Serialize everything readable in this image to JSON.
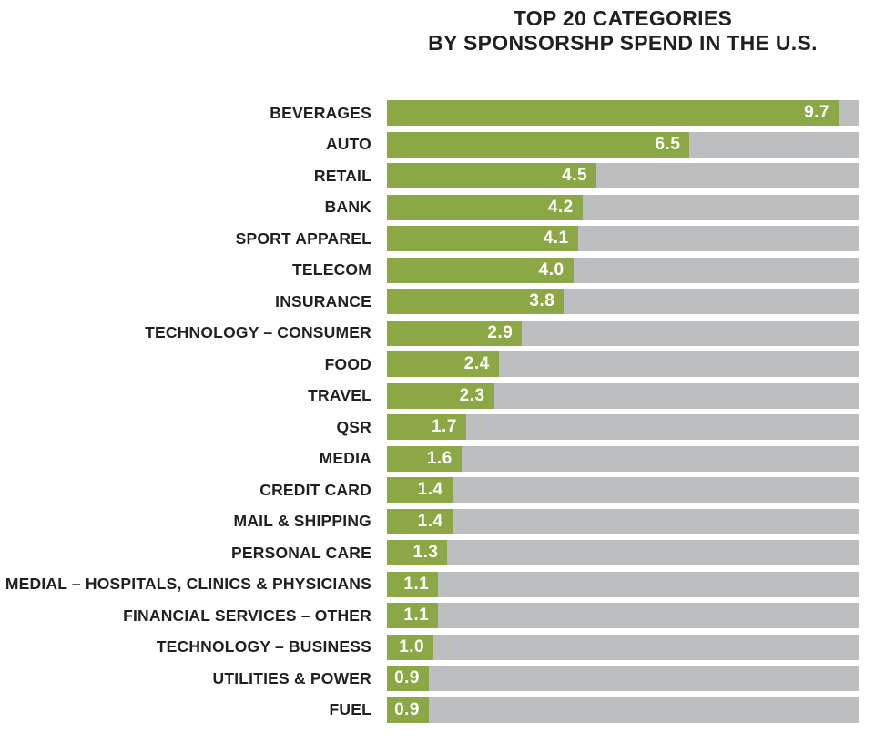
{
  "title": {
    "line1": "TOP 20 CATEGORIES",
    "line2": "BY SPONSORSHP SPEND IN THE U.S."
  },
  "colors": {
    "bar_fill": "#8CA745",
    "bar_track": "#BCBEC0",
    "title_text": "#231F20",
    "category_text": "#231F20",
    "value_text": "#FFFFFF"
  },
  "chart_data": {
    "type": "bar",
    "orientation": "horizontal",
    "title": "TOP 20 CATEGORIES BY SPONSORSHP SPEND IN THE U.S.",
    "xlabel": "",
    "ylabel": "",
    "xlim": [
      0,
      10.13
    ],
    "grid": false,
    "legend": false,
    "categories": [
      "BEVERAGES",
      "AUTO",
      "RETAIL",
      "BANK",
      "SPORT APPAREL",
      "TELECOM",
      "INSURANCE",
      "TECHNOLOGY – CONSUMER",
      "FOOD",
      "TRAVEL",
      "QSR",
      "MEDIA",
      "CREDIT CARD",
      "MAIL & SHIPPING",
      "PERSONAL CARE",
      "MEDIAL – HOSPITALS, CLINICS & PHYSICIANS",
      "FINANCIAL SERVICES – OTHER",
      "TECHNOLOGY – BUSINESS",
      "UTILITIES & POWER",
      "FUEL"
    ],
    "values": [
      9.7,
      6.5,
      4.5,
      4.2,
      4.1,
      4.0,
      3.8,
      2.9,
      2.4,
      2.3,
      1.7,
      1.6,
      1.4,
      1.4,
      1.3,
      1.1,
      1.1,
      1.0,
      0.9,
      0.9
    ],
    "value_labels": [
      "9.7",
      "6.5",
      "4.5",
      "4.2",
      "4.1",
      "4.0",
      "3.8",
      "2.9",
      "2.4",
      "2.3",
      "1.7",
      "1.6",
      "1.4",
      "1.4",
      "1.3",
      "1.1",
      "1.1",
      "1.0",
      "0.9",
      "0.9"
    ]
  }
}
